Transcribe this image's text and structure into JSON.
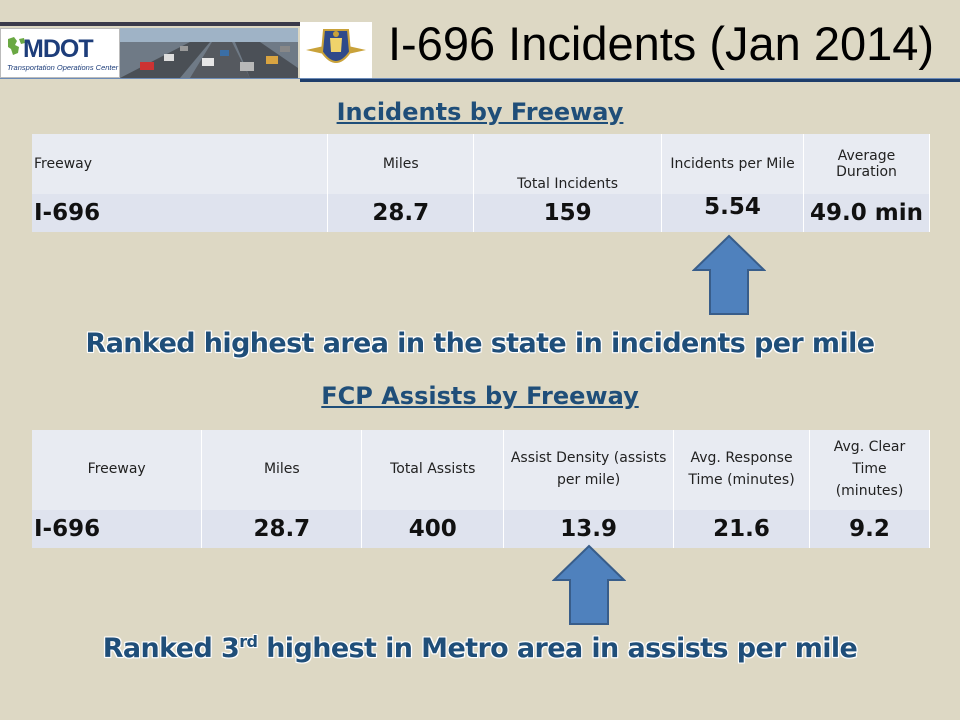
{
  "header": {
    "logo_text": "MDOT",
    "logo_subtitle": "Transportation Operations Center",
    "title": "I-696 Incidents (Jan 2014)"
  },
  "incidents": {
    "heading": "Incidents by Freeway",
    "columns": [
      "Freeway",
      "Miles",
      "Total Incidents",
      "Incidents per Mile",
      "Average Duration"
    ],
    "row": [
      "I-696",
      "28.7",
      "159",
      "5.54",
      "49.0 min"
    ],
    "caption": "Ranked highest area in the state in incidents per mile"
  },
  "assists": {
    "heading": "FCP Assists by Freeway",
    "columns": [
      "Freeway",
      "Miles",
      "Total Assists",
      "Assist Density (assists per mile)",
      "Avg. Response Time (minutes)",
      "Avg. Clear Time (minutes)"
    ],
    "row": [
      "I-696",
      "28.7",
      "400",
      "13.9",
      "21.6",
      "9.2"
    ],
    "caption_pre": "Ranked 3",
    "caption_sup": "rd",
    "caption_post": " highest in Metro area in assists per mile"
  },
  "colors": {
    "accent": "#1f4e79",
    "arrow": "#4f81bd",
    "background": "#ddd8c4"
  }
}
